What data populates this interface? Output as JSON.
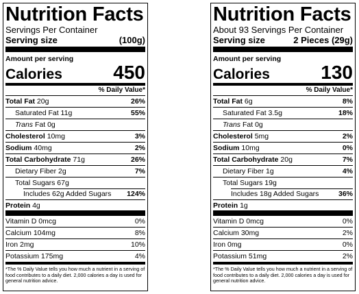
{
  "left": {
    "title": "Nutrition Facts",
    "servings": "Servings Per Container",
    "serving_size_label": "Serving size",
    "serving_size_value": "(100g)",
    "amount_per_serving": "Amount per serving",
    "calories_label": "Calories",
    "calories_value": "450",
    "dv_header": "% Daily Value*",
    "total_fat_label": "Total Fat",
    "total_fat_amount": "20g",
    "total_fat_dv": "26%",
    "sat_fat_label": "Saturated Fat 11g",
    "sat_fat_dv": "55%",
    "trans_italic": "Trans",
    "trans_rest": "Fat 0g",
    "chol_label": "Cholesterol",
    "chol_amount": "10mg",
    "chol_dv": "3%",
    "sodium_label": "Sodium",
    "sodium_amount": "40mg",
    "sodium_dv": "2%",
    "carb_label": "Total Carbohydrate",
    "carb_amount": "71g",
    "carb_dv": "26%",
    "fiber_label": "Dietary Fiber 2g",
    "fiber_dv": "7%",
    "sugars_label": "Total Sugars 67g",
    "added_label": "Includes 62g Added Sugars",
    "added_dv": "124%",
    "protein_label": "Protein",
    "protein_amount": "4g",
    "vitd_label": "Vitamin D 0mcg",
    "vitd_dv": "0%",
    "calcium_label": "Calcium 104mg",
    "calcium_dv": "8%",
    "iron_label": "Iron 2mg",
    "iron_dv": "10%",
    "potassium_label": "Potassium 175mg",
    "potassium_dv": "4%",
    "footnote": "*The % Daily Value tells you how much a nutrient in a serving of food contributes to a daily diet. 2,000 calories a day is used for general nutrition advice."
  },
  "right": {
    "title": "Nutrition Facts",
    "servings": "About 93 Servings Per Container",
    "serving_size_label": "Serving size",
    "serving_size_value": "2 Pieces (29g)",
    "amount_per_serving": "Amount per serving",
    "calories_label": "Calories",
    "calories_value": "130",
    "dv_header": "% Daily Value*",
    "total_fat_label": "Total Fat",
    "total_fat_amount": "6g",
    "total_fat_dv": "8%",
    "sat_fat_label": "Saturated Fat 3.5g",
    "sat_fat_dv": "18%",
    "trans_italic": "Trans",
    "trans_rest": "Fat 0g",
    "chol_label": "Cholesterol",
    "chol_amount": "5mg",
    "chol_dv": "2%",
    "sodium_label": "Sodium",
    "sodium_amount": "10mg",
    "sodium_dv": "0%",
    "carb_label": "Total Carbohydrate",
    "carb_amount": "20g",
    "carb_dv": "7%",
    "fiber_label": "Dietary Fiber 1g",
    "fiber_dv": "4%",
    "sugars_label": "Total Sugars 19g",
    "added_label": "Includes 18g Added Sugars",
    "added_dv": "36%",
    "protein_label": "Protein",
    "protein_amount": "1g",
    "vitd_label": "Vitamin D 0mcg",
    "vitd_dv": "0%",
    "calcium_label": "Calcium 30mg",
    "calcium_dv": "2%",
    "iron_label": "Iron 0mg",
    "iron_dv": "0%",
    "potassium_label": "Potassium 51mg",
    "potassium_dv": "2%",
    "footnote": "*The % Daily Value tells you how much a nutrient in a serving of food contributes to a daily diet. 2,000 calories a day is used for general nutrition advice."
  }
}
